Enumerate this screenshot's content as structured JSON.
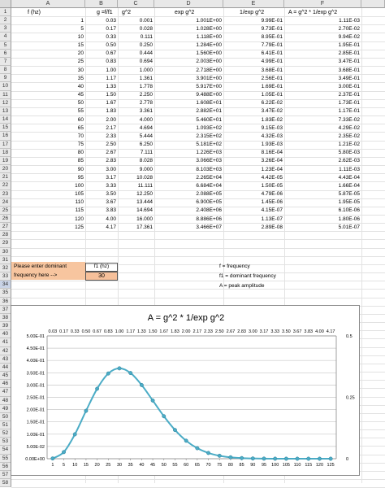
{
  "columns": [
    "A",
    "B",
    "C",
    "D",
    "E",
    "F"
  ],
  "headers": {
    "a": "f (hz)",
    "b": "g =f/f1",
    "c": "g^2",
    "d": "exp g^2",
    "e": "1/exp g^2",
    "f": "A = g^2 * 1/exp g^2"
  },
  "table_rows": [
    [
      "1",
      "0.03",
      "0.001",
      "1.001E+00",
      "9.99E-01",
      "1.11E-03"
    ],
    [
      "5",
      "0.17",
      "0.028",
      "1.028E+00",
      "9.73E-01",
      "2.70E-02"
    ],
    [
      "10",
      "0.33",
      "0.111",
      "1.118E+00",
      "8.95E-01",
      "9.94E-02"
    ],
    [
      "15",
      "0.50",
      "0.250",
      "1.284E+00",
      "7.79E-01",
      "1.95E-01"
    ],
    [
      "20",
      "0.67",
      "0.444",
      "1.560E+00",
      "6.41E-01",
      "2.85E-01"
    ],
    [
      "25",
      "0.83",
      "0.694",
      "2.003E+00",
      "4.99E-01",
      "3.47E-01"
    ],
    [
      "30",
      "1.00",
      "1.000",
      "2.718E+00",
      "3.68E-01",
      "3.68E-01"
    ],
    [
      "35",
      "1.17",
      "1.361",
      "3.901E+00",
      "2.56E-01",
      "3.49E-01"
    ],
    [
      "40",
      "1.33",
      "1.778",
      "5.917E+00",
      "1.69E-01",
      "3.00E-01"
    ],
    [
      "45",
      "1.50",
      "2.250",
      "9.488E+00",
      "1.05E-01",
      "2.37E-01"
    ],
    [
      "50",
      "1.67",
      "2.778",
      "1.608E+01",
      "6.22E-02",
      "1.73E-01"
    ],
    [
      "55",
      "1.83",
      "3.361",
      "2.882E+01",
      "3.47E-02",
      "1.17E-01"
    ],
    [
      "60",
      "2.00",
      "4.000",
      "5.460E+01",
      "1.83E-02",
      "7.33E-02"
    ],
    [
      "65",
      "2.17",
      "4.694",
      "1.093E+02",
      "9.15E-03",
      "4.29E-02"
    ],
    [
      "70",
      "2.33",
      "5.444",
      "2.315E+02",
      "4.32E-03",
      "2.35E-02"
    ],
    [
      "75",
      "2.50",
      "6.250",
      "5.181E+02",
      "1.93E-03",
      "1.21E-02"
    ],
    [
      "80",
      "2.67",
      "7.111",
      "1.226E+03",
      "8.16E-04",
      "5.80E-03"
    ],
    [
      "85",
      "2.83",
      "8.028",
      "3.066E+03",
      "3.26E-04",
      "2.62E-03"
    ],
    [
      "90",
      "3.00",
      "9.000",
      "8.103E+03",
      "1.23E-04",
      "1.11E-03"
    ],
    [
      "95",
      "3.17",
      "10.028",
      "2.265E+04",
      "4.42E-05",
      "4.43E-04"
    ],
    [
      "100",
      "3.33",
      "11.111",
      "6.684E+04",
      "1.50E-05",
      "1.66E-04"
    ],
    [
      "105",
      "3.50",
      "12.250",
      "2.088E+05",
      "4.79E-06",
      "5.87E-05"
    ],
    [
      "110",
      "3.67",
      "13.444",
      "6.900E+05",
      "1.45E-06",
      "1.95E-05"
    ],
    [
      "115",
      "3.83",
      "14.694",
      "2.408E+06",
      "4.15E-07",
      "6.10E-06"
    ],
    [
      "120",
      "4.00",
      "16.000",
      "8.886E+06",
      "1.13E-07",
      "1.80E-06"
    ],
    [
      "125",
      "4.17",
      "17.361",
      "3.466E+07",
      "2.89E-08",
      "5.01E-07"
    ]
  ],
  "input": {
    "label1": "Please enter dominant",
    "label2": "frequency here -->",
    "header": "f1 (hz)",
    "value": "30"
  },
  "legend_notes": [
    "f = frequency",
    "f1 = dominant frequency",
    "A = peak amplitude"
  ],
  "colors": {
    "input_fill": "#f6c09a",
    "series": "#4bacc6",
    "header_bg": "#e8e8e8"
  },
  "chart_data": {
    "type": "line",
    "title": "A = g^2 * 1/exp g^2",
    "x": [
      "1",
      "5",
      "10",
      "15",
      "20",
      "25",
      "30",
      "35",
      "40",
      "45",
      "50",
      "55",
      "60",
      "65",
      "70",
      "75",
      "80",
      "85",
      "90",
      "95",
      "100",
      "105",
      "110",
      "115",
      "120",
      "125"
    ],
    "x2": [
      "0.03",
      "0.17",
      "0.33",
      "0.50",
      "0.67",
      "0.83",
      "1.00",
      "1.17",
      "1.33",
      "1.50",
      "1.67",
      "1.83",
      "2.00",
      "2.17",
      "2.33",
      "2.50",
      "2.67",
      "2.83",
      "3.00",
      "3.17",
      "3.33",
      "3.50",
      "3.67",
      "3.83",
      "4.00",
      "4.17"
    ],
    "series": [
      {
        "values": [
          0.00111,
          0.027,
          0.0994,
          0.195,
          0.285,
          0.347,
          0.368,
          0.349,
          0.3,
          0.237,
          0.173,
          0.117,
          0.0733,
          0.0429,
          0.0235,
          0.0121,
          0.0058,
          0.00262,
          0.00111,
          0.000443,
          0.000166,
          5.87e-05,
          1.95e-05,
          6.1e-06,
          1.8e-06,
          5.01e-07
        ]
      }
    ],
    "yticks": [
      "0.00E+00",
      "5.00E-02",
      "1.00E-01",
      "1.50E-01",
      "2.00E-01",
      "2.50E-01",
      "3.00E-01",
      "3.50E-01",
      "4.00E-01",
      "4.50E-01",
      "5.00E-01"
    ],
    "ylim": [
      0,
      0.5
    ],
    "y2ticks": [
      "0",
      "0.25",
      "0.5"
    ],
    "grid": true
  }
}
